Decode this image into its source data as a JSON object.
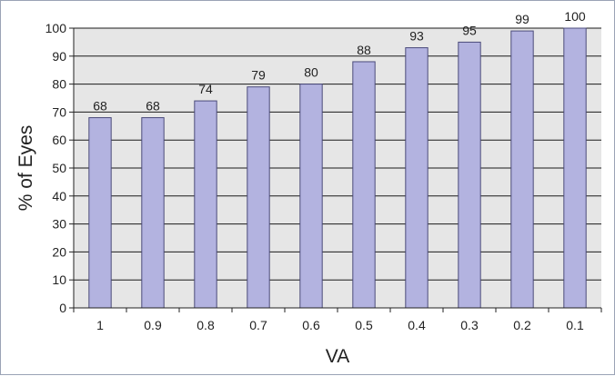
{
  "chart_data": {
    "type": "bar",
    "title": "",
    "xlabel": "VA",
    "ylabel": "% of Eyes",
    "categories": [
      "1",
      "0.9",
      "0.8",
      "0.7",
      "0.6",
      "0.5",
      "0.4",
      "0.3",
      "0.2",
      "0.1"
    ],
    "values": [
      68,
      68,
      74,
      79,
      80,
      88,
      93,
      95,
      99,
      100
    ],
    "data_labels": [
      "68",
      "68",
      "74",
      "79",
      "80",
      "88",
      "93",
      "95",
      "99",
      "100"
    ],
    "ylim": [
      0,
      100
    ],
    "yticks": [
      0,
      10,
      20,
      30,
      40,
      50,
      60,
      70,
      80,
      90,
      100
    ],
    "grid": true,
    "legend": "none",
    "colors": {
      "bar_fill": "#b3b3e0",
      "bar_stroke": "#4a4a7a",
      "plot_background": "#e6e6e6",
      "gridline": "#1a1a1a"
    }
  }
}
